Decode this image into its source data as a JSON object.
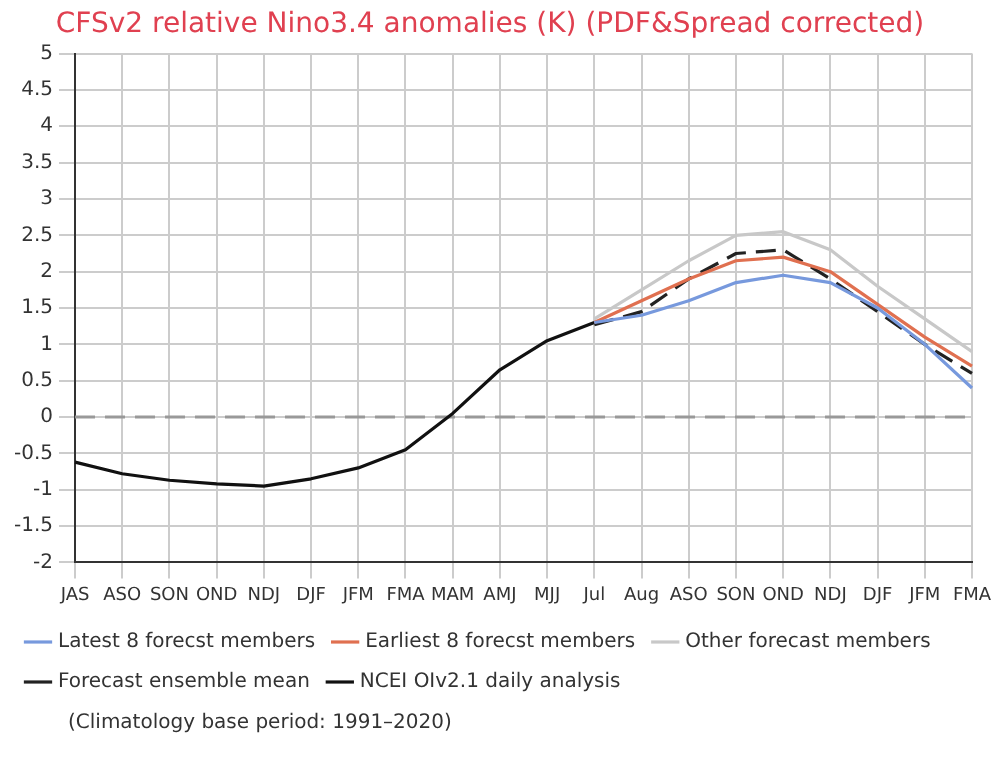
{
  "chart_data": {
    "type": "line",
    "title": "CFSv2 relative Nino3.4 anomalies (K) (PDF&Spread corrected)",
    "categories": [
      "JAS",
      "ASO",
      "SON",
      "OND",
      "NDJ",
      "DJF",
      "JFM",
      "FMA",
      "MAM",
      "AMJ",
      "MJJ",
      "Jul",
      "Aug",
      "ASO",
      "SON",
      "OND",
      "NDJ",
      "DJF",
      "JFM",
      "FMA"
    ],
    "series": [
      {
        "name": "Latest 8 forecst members",
        "color": "#7799dd",
        "line_style": "solid",
        "values": [
          null,
          null,
          null,
          null,
          null,
          null,
          null,
          null,
          null,
          null,
          null,
          1.3,
          1.4,
          1.6,
          1.85,
          1.95,
          1.85,
          1.5,
          1.0,
          0.4
        ]
      },
      {
        "name": "Earliest 8 forecst members",
        "color": "#e07050",
        "line_style": "solid",
        "values": [
          null,
          null,
          null,
          null,
          null,
          null,
          null,
          null,
          null,
          null,
          null,
          1.3,
          1.6,
          1.9,
          2.15,
          2.2,
          2.0,
          1.55,
          1.1,
          0.7
        ]
      },
      {
        "name": "Other forecast members",
        "color": "#c8c8c8",
        "line_style": "solid",
        "values": [
          null,
          null,
          null,
          null,
          null,
          null,
          null,
          null,
          null,
          null,
          null,
          1.35,
          1.75,
          2.15,
          2.5,
          2.55,
          2.3,
          1.8,
          1.35,
          0.9
        ]
      },
      {
        "name": "Forecast ensemble mean",
        "color": "#222222",
        "line_style": "dashed",
        "values": [
          null,
          null,
          null,
          null,
          null,
          null,
          null,
          null,
          null,
          null,
          null,
          1.27,
          1.45,
          1.9,
          2.25,
          2.3,
          1.9,
          1.45,
          1.0,
          0.6
        ]
      },
      {
        "name": "NCEI OIv2.1 daily analysis",
        "color": "#111111",
        "line_style": "solid",
        "values": [
          -0.62,
          -0.78,
          -0.87,
          -0.92,
          -0.95,
          -0.85,
          -0.7,
          -0.45,
          0.05,
          0.65,
          1.05,
          1.3,
          null,
          null,
          null,
          null,
          null,
          null,
          null,
          null
        ]
      }
    ],
    "ylim": [
      -2,
      5
    ],
    "yticks": [
      -2,
      -1.5,
      -1,
      -0.5,
      0,
      0.5,
      1,
      1.5,
      2,
      2.5,
      3,
      3.5,
      4,
      4.5,
      5
    ],
    "ref_lines": [
      {
        "axis": "y",
        "value": 0,
        "color": "#999999",
        "line_style": "dashed"
      }
    ],
    "grid": true,
    "legend": "bottom",
    "marker": "none",
    "annotations": [
      "(Climatology base period: 1991–2020)"
    ]
  }
}
